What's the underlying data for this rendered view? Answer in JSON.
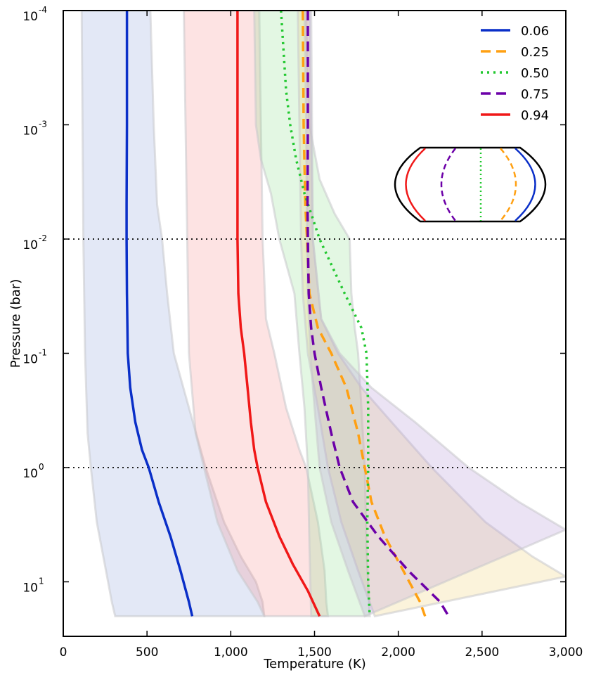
{
  "chart_data": {
    "type": "line",
    "xlabel": "Temperature (K)",
    "ylabel": "Pressure (bar)",
    "xlim": [
      0,
      3000
    ],
    "ylim": [
      0.0001,
      30
    ],
    "y_scale": "log",
    "y_inverted": true,
    "x_ticks": [
      {
        "value": 0,
        "label": "0"
      },
      {
        "value": 500,
        "label": "500"
      },
      {
        "value": 1000,
        "label": "1,000"
      },
      {
        "value": 1500,
        "label": "1,500"
      },
      {
        "value": 2000,
        "label": "2,000"
      },
      {
        "value": 2500,
        "label": "2,500"
      },
      {
        "value": 3000,
        "label": "3,000"
      }
    ],
    "y_ticks": [
      {
        "value": 0.0001,
        "base": "10",
        "exp": "-4"
      },
      {
        "value": 0.001,
        "base": "10",
        "exp": "-3"
      },
      {
        "value": 0.01,
        "base": "10",
        "exp": "-2"
      },
      {
        "value": 0.1,
        "base": "10",
        "exp": "-1"
      },
      {
        "value": 1,
        "base": "10",
        "exp": "0"
      },
      {
        "value": 10,
        "base": "10",
        "exp": "1"
      }
    ],
    "reference_lines": [
      0.01,
      1
    ],
    "legend_position": "top-right",
    "series": [
      {
        "name": "0.06",
        "color": "#0a2fc8",
        "dash": "solid",
        "points": [
          [
            380,
            0.0001
          ],
          [
            380,
            0.001
          ],
          [
            378,
            0.005
          ],
          [
            378,
            0.01
          ],
          [
            380,
            0.03
          ],
          [
            385,
            0.1
          ],
          [
            400,
            0.2
          ],
          [
            430,
            0.4
          ],
          [
            470,
            0.7
          ],
          [
            510,
            1.0
          ],
          [
            570,
            2.0
          ],
          [
            640,
            4.0
          ],
          [
            700,
            8.0
          ],
          [
            750,
            15.0
          ],
          [
            770,
            20.0
          ]
        ]
      },
      {
        "name": "0.25",
        "color": "#ffa012",
        "dash": "dashed",
        "points": [
          [
            1430,
            0.0001
          ],
          [
            1435,
            0.001
          ],
          [
            1445,
            0.005
          ],
          [
            1455,
            0.01
          ],
          [
            1470,
            0.03
          ],
          [
            1520,
            0.06
          ],
          [
            1600,
            0.1
          ],
          [
            1690,
            0.2
          ],
          [
            1760,
            0.5
          ],
          [
            1800,
            1.0
          ],
          [
            1840,
            2.0
          ],
          [
            1920,
            4.0
          ],
          [
            2030,
            8.0
          ],
          [
            2130,
            15.0
          ],
          [
            2160,
            20.0
          ]
        ]
      },
      {
        "name": "0.50",
        "color": "#22c830",
        "dash": "dotted",
        "points": [
          [
            1300,
            0.0001
          ],
          [
            1330,
            0.0005
          ],
          [
            1355,
            0.001
          ],
          [
            1390,
            0.002
          ],
          [
            1440,
            0.004
          ],
          [
            1530,
            0.01
          ],
          [
            1680,
            0.03
          ],
          [
            1780,
            0.06
          ],
          [
            1810,
            0.1
          ],
          [
            1820,
            0.3
          ],
          [
            1820,
            1.0
          ],
          [
            1815,
            3.0
          ],
          [
            1820,
            10.0
          ],
          [
            1830,
            20.0
          ]
        ]
      },
      {
        "name": "0.75",
        "color": "#6c00a8",
        "dash": "dashed",
        "points": [
          [
            1460,
            0.0001
          ],
          [
            1460,
            0.001
          ],
          [
            1458,
            0.005
          ],
          [
            1460,
            0.01
          ],
          [
            1465,
            0.03
          ],
          [
            1480,
            0.06
          ],
          [
            1500,
            0.1
          ],
          [
            1540,
            0.2
          ],
          [
            1600,
            0.5
          ],
          [
            1650,
            1.0
          ],
          [
            1730,
            2.0
          ],
          [
            1880,
            4.0
          ],
          [
            2060,
            8.0
          ],
          [
            2250,
            15.0
          ],
          [
            2300,
            20.0
          ]
        ]
      },
      {
        "name": "0.94",
        "color": "#f01818",
        "dash": "solid",
        "points": [
          [
            1040,
            0.0001
          ],
          [
            1040,
            0.001
          ],
          [
            1040,
            0.01
          ],
          [
            1045,
            0.03
          ],
          [
            1060,
            0.06
          ],
          [
            1080,
            0.1
          ],
          [
            1100,
            0.2
          ],
          [
            1120,
            0.4
          ],
          [
            1140,
            0.7
          ],
          [
            1160,
            1.0
          ],
          [
            1210,
            2.0
          ],
          [
            1290,
            4.0
          ],
          [
            1370,
            7.0
          ],
          [
            1460,
            12.0
          ],
          [
            1530,
            20.0
          ]
        ]
      }
    ],
    "bands": [
      {
        "series": "0.06",
        "color": "#7f98d8",
        "opacity": 0.22,
        "lower": [
          [
            110,
            0.0001
          ],
          [
            115,
            0.001
          ],
          [
            120,
            0.01
          ],
          [
            130,
            0.1
          ],
          [
            145,
            0.5
          ],
          [
            165,
            1.0
          ],
          [
            200,
            3.0
          ],
          [
            255,
            8.0
          ],
          [
            290,
            15.0
          ],
          [
            310,
            20.0
          ]
        ],
        "upper": [
          [
            520,
            0.0001
          ],
          [
            540,
            0.001
          ],
          [
            560,
            0.005
          ],
          [
            590,
            0.01
          ],
          [
            620,
            0.03
          ],
          [
            660,
            0.1
          ],
          [
            750,
            0.3
          ],
          [
            850,
            1.0
          ],
          [
            960,
            3.0
          ],
          [
            1060,
            6.0
          ],
          [
            1150,
            10.0
          ],
          [
            1190,
            15.0
          ],
          [
            1200,
            20.0
          ]
        ]
      },
      {
        "series": "0.94",
        "color": "#f88080",
        "opacity": 0.22,
        "lower": [
          [
            720,
            0.0001
          ],
          [
            730,
            0.001
          ],
          [
            740,
            0.01
          ],
          [
            750,
            0.1
          ],
          [
            790,
            0.5
          ],
          [
            840,
            1.0
          ],
          [
            920,
            3.0
          ],
          [
            1040,
            8.0
          ],
          [
            1160,
            15.0
          ],
          [
            1200,
            20.0
          ]
        ],
        "upper": [
          [
            1170,
            0.0001
          ],
          [
            1180,
            0.001
          ],
          [
            1190,
            0.01
          ],
          [
            1210,
            0.05
          ],
          [
            1260,
            0.1
          ],
          [
            1330,
            0.3
          ],
          [
            1410,
            0.7
          ],
          [
            1450,
            1.0
          ],
          [
            1520,
            3.0
          ],
          [
            1560,
            8.0
          ],
          [
            1570,
            15.0
          ],
          [
            1580,
            20.0
          ]
        ]
      },
      {
        "series": "0.50",
        "color": "#8ee08e",
        "opacity": 0.25,
        "lower": [
          [
            1140,
            0.0001
          ],
          [
            1150,
            0.001
          ],
          [
            1180,
            0.002
          ],
          [
            1240,
            0.004
          ],
          [
            1290,
            0.01
          ],
          [
            1380,
            0.03
          ],
          [
            1410,
            0.1
          ],
          [
            1440,
            0.3
          ],
          [
            1460,
            1.0
          ],
          [
            1470,
            5.0
          ],
          [
            1480,
            20.0
          ]
        ],
        "upper": [
          [
            1450,
            0.0001
          ],
          [
            1470,
            0.001
          ],
          [
            1530,
            0.003
          ],
          [
            1620,
            0.006
          ],
          [
            1710,
            0.01
          ],
          [
            1720,
            0.03
          ],
          [
            1740,
            0.06
          ],
          [
            1760,
            0.1
          ],
          [
            1780,
            0.3
          ],
          [
            1800,
            1.0
          ],
          [
            1810,
            5.0
          ],
          [
            1830,
            20.0
          ]
        ]
      },
      {
        "series": "0.25",
        "color": "#f0d070",
        "opacity": 0.25,
        "lower": [
          [
            1400,
            0.0001
          ],
          [
            1410,
            0.001
          ],
          [
            1420,
            0.01
          ],
          [
            1430,
            0.03
          ],
          [
            1460,
            0.1
          ],
          [
            1520,
            0.3
          ],
          [
            1580,
            1.0
          ],
          [
            1660,
            3.0
          ],
          [
            1760,
            8.0
          ],
          [
            1860,
            20.0
          ]
        ],
        "upper": [
          [
            1470,
            0.0001
          ],
          [
            1480,
            0.001
          ],
          [
            1490,
            0.01
          ],
          [
            1540,
            0.05
          ],
          [
            1640,
            0.1
          ],
          [
            1780,
            0.2
          ],
          [
            1960,
            0.4
          ],
          [
            2200,
            1.0
          ],
          [
            2520,
            3.0
          ],
          [
            2800,
            6.0
          ],
          [
            3000,
            9.0
          ]
        ]
      },
      {
        "series": "0.75",
        "color": "#b89ad6",
        "opacity": 0.28,
        "lower": [
          [
            1440,
            0.0001
          ],
          [
            1450,
            0.001
          ],
          [
            1455,
            0.01
          ],
          [
            1460,
            0.03
          ],
          [
            1475,
            0.1
          ],
          [
            1500,
            0.3
          ],
          [
            1530,
            1.0
          ],
          [
            1600,
            3.0
          ],
          [
            1700,
            8.0
          ],
          [
            1800,
            20.0
          ]
        ],
        "upper": [
          [
            1480,
            0.0001
          ],
          [
            1485,
            0.001
          ],
          [
            1490,
            0.01
          ],
          [
            1540,
            0.05
          ],
          [
            1650,
            0.1
          ],
          [
            1840,
            0.2
          ],
          [
            2100,
            0.4
          ],
          [
            2420,
            1.0
          ],
          [
            2720,
            2.0
          ],
          [
            3000,
            3.5
          ]
        ]
      }
    ],
    "inset": {
      "description_colors": [
        "#f01818",
        "#6c00a8",
        "#22c830",
        "#ffa012",
        "#0a2fc8"
      ]
    }
  }
}
